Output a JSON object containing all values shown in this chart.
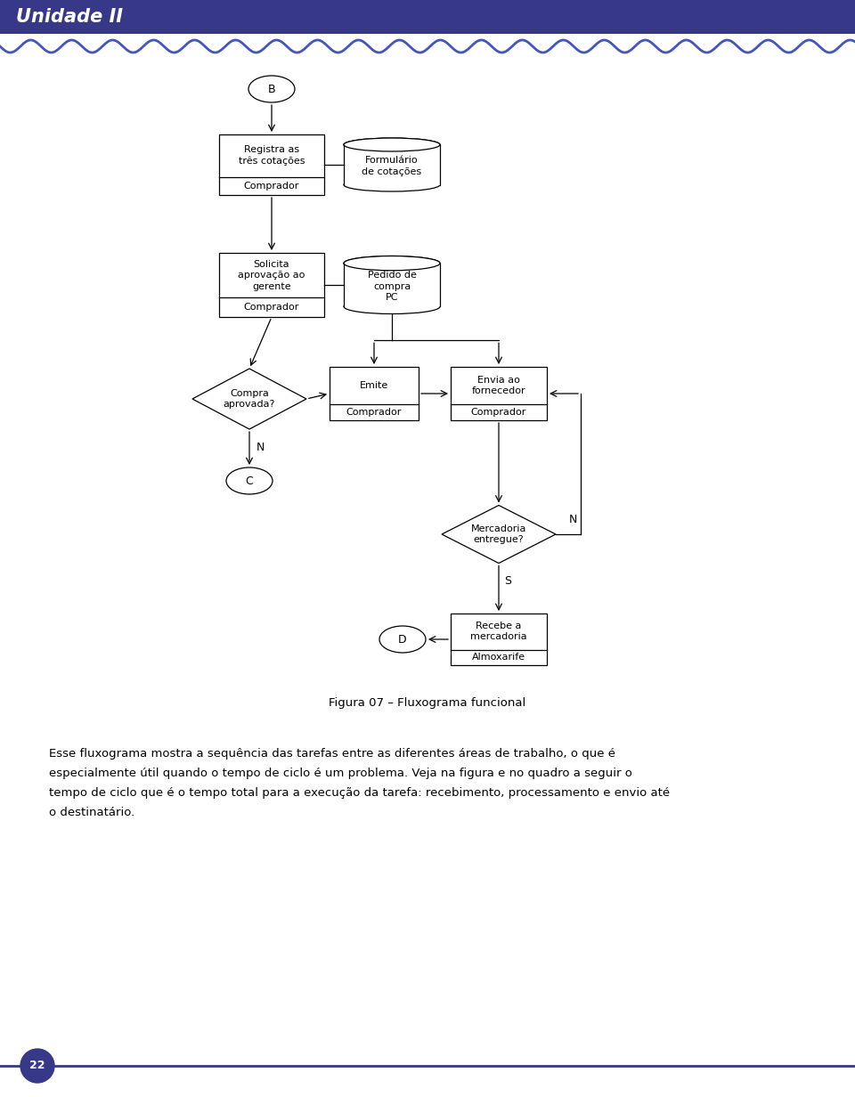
{
  "title_bar_color": "#383888",
  "title_text": "Unidade II",
  "title_text_color": "#ffffff",
  "wave_color": "#4455bb",
  "page_bg": "#ffffff",
  "page_num": "22",
  "page_num_bg": "#383888",
  "footer_line_color": "#383888",
  "figure_caption": "Figura 07 – Fluxograma funcional",
  "body_line1": "Esse fluxograma mostra a sequência das tarefas entre as diferentes áreas de trabalho, o que é",
  "body_line2": "especialmente útil quando o tempo de ciclo é um problema. Veja na figura e no quadro a seguir o",
  "body_line3": "tempo de ciclo que é o tempo total para a execução da tarefa: recebimento, processamento e envio até",
  "body_line4": "o destinatário."
}
